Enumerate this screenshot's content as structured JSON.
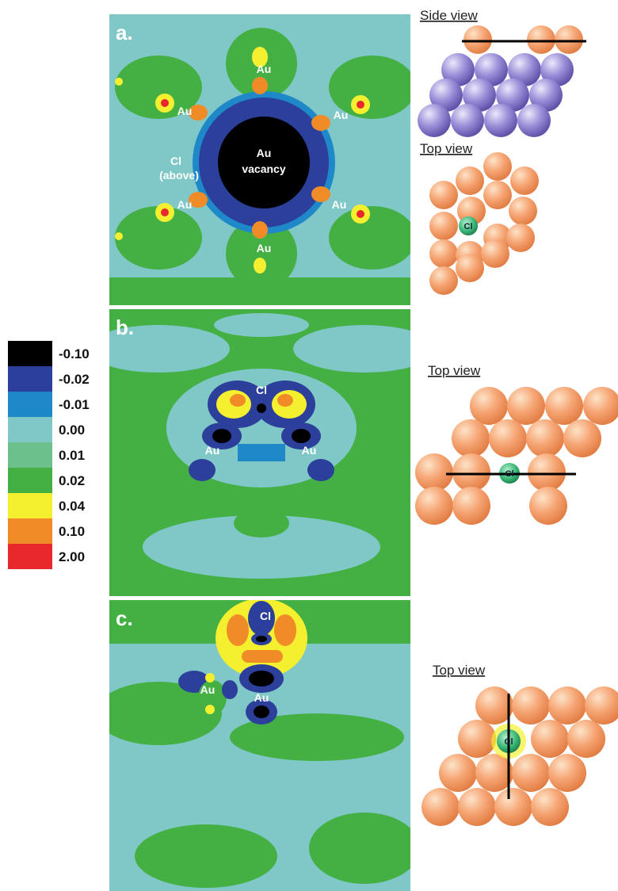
{
  "panels": [
    {
      "label": "a.",
      "annotations": [
        "Au",
        "Au",
        "Au",
        "Cl",
        "(above)",
        "Au",
        "Au",
        "Au",
        "Au",
        "vacancy"
      ]
    },
    {
      "label": "b.",
      "annotations": [
        "Cl",
        "Au",
        "Au"
      ]
    },
    {
      "label": "c.",
      "annotations": [
        "Cl",
        "Au",
        "Au"
      ]
    }
  ],
  "legend": {
    "items": [
      {
        "label": "-0.10",
        "color": "#000000"
      },
      {
        "label": "-0.02",
        "color": "#2c3f9a"
      },
      {
        "label": "-0.01",
        "color": "#1e88c8"
      },
      {
        "label": "0.00",
        "color": "#80c8c8"
      },
      {
        "label": "0.01",
        "color": "#6cc08c"
      },
      {
        "label": "0.02",
        "color": "#44b044"
      },
      {
        "label": "0.04",
        "color": "#f4f030"
      },
      {
        "label": "0.10",
        "color": "#f08c28"
      },
      {
        "label": "2.00",
        "color": "#e8282c"
      }
    ]
  },
  "models": [
    {
      "views": [
        "Side view",
        "Top view"
      ],
      "atom": "Cl"
    },
    {
      "views": [
        "Top view"
      ],
      "atom": "Cl"
    },
    {
      "views": [
        "Top view"
      ],
      "atom": "Cl"
    }
  ]
}
